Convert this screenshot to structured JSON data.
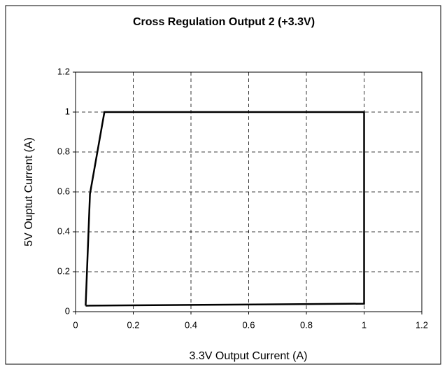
{
  "chart_data": {
    "type": "line",
    "title": "Cross Regulation Output 2 (+3.3V)",
    "x_label": "3.3V Output Current (A)",
    "y_label": "5V Ouptut Current (A)",
    "x": [
      0.035,
      0.05,
      0.1,
      1.0,
      1.0,
      0.035
    ],
    "values": [
      0.03,
      0.59,
      1.0,
      1.0,
      0.04,
      0.03
    ],
    "color": "#000000",
    "xlim": [
      0,
      1.2
    ],
    "xticks": [
      0,
      0.2,
      0.4,
      0.6,
      0.8,
      1,
      1.2
    ],
    "ylim": [
      0,
      1.2
    ],
    "yticks": [
      0,
      0.2,
      0.4,
      0.6,
      0.8,
      1,
      1.2
    ],
    "grid": true
  }
}
